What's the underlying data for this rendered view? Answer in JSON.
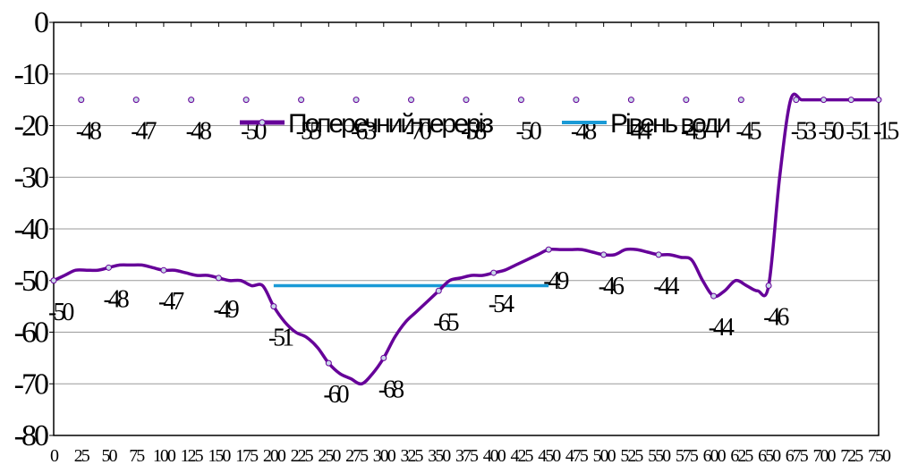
{
  "chart_data": {
    "type": "line",
    "title": "",
    "xlabel": "",
    "ylabel": "",
    "ylim": [
      -80,
      0
    ],
    "yticks": [
      0,
      -10,
      -20,
      -30,
      -40,
      -50,
      -60,
      -70,
      -80
    ],
    "ytick_labels": [
      "0",
      "-10",
      "-20",
      "-30",
      "-40",
      "-50",
      "-60",
      "-70",
      "-80"
    ],
    "grid": true,
    "legend_position": "top-center",
    "x": [
      0,
      25,
      50,
      75,
      100,
      125,
      150,
      175,
      200,
      225,
      250,
      275,
      300,
      325,
      350,
      375,
      400,
      425,
      450,
      475,
      500,
      525,
      550,
      575,
      600,
      625,
      650,
      675,
      700,
      725,
      750
    ],
    "xtick_labels": [
      "0",
      "25",
      "50",
      "75",
      "100",
      "125",
      "150",
      "175",
      "200",
      "225",
      "250",
      "275",
      "300",
      "325",
      "350",
      "375",
      "400",
      "425",
      "450",
      "475",
      "500",
      "525",
      "550",
      "575",
      "600",
      "625",
      "650",
      "675",
      "700",
      "725",
      "750"
    ],
    "series": [
      {
        "name": "Поперечний переріз",
        "color": "#660099",
        "x": [
          0,
          10,
          20,
          30,
          40,
          50,
          60,
          70,
          80,
          90,
          100,
          110,
          120,
          130,
          140,
          150,
          160,
          170,
          180,
          190,
          200,
          210,
          220,
          230,
          240,
          250,
          260,
          270,
          280,
          290,
          300,
          310,
          320,
          330,
          340,
          350,
          360,
          370,
          380,
          390,
          400,
          410,
          420,
          430,
          440,
          450,
          460,
          470,
          480,
          490,
          500,
          510,
          520,
          530,
          540,
          550,
          560,
          570,
          580,
          590,
          600,
          610,
          620,
          630,
          640,
          650,
          660,
          670,
          680,
          690,
          700,
          710,
          720,
          730,
          740,
          750
        ],
        "y": [
          -50,
          -49,
          -48,
          -48,
          -48,
          -47.5,
          -47,
          -47,
          -47,
          -47.5,
          -48,
          -48,
          -48.5,
          -49,
          -49,
          -49.5,
          -50,
          -50,
          -51,
          -51,
          -55,
          -58,
          -60,
          -61,
          -63,
          -66,
          -68,
          -69,
          -70,
          -68,
          -65,
          -61,
          -58,
          -56,
          -54,
          -52,
          -50,
          -49.5,
          -49,
          -49,
          -48.5,
          -48,
          -47,
          -46,
          -45,
          -44,
          -44,
          -44,
          -44,
          -44.5,
          -45,
          -45,
          -44,
          -44,
          -44.5,
          -45,
          -45,
          -45.5,
          -46,
          -50,
          -53,
          -52,
          -50,
          -51,
          -52,
          -51,
          -30,
          -15,
          -15,
          -15,
          -15,
          -15,
          -15,
          -15,
          -15,
          -15
        ],
        "marker": "circle"
      },
      {
        "name": "Рівень води",
        "color": "#1a9ad6",
        "x": [
          200,
          450
        ],
        "y": [
          -51,
          -51
        ]
      }
    ],
    "data_labels": [
      "-50",
      "-48",
      "-48",
      "-47",
      "-47",
      "-48",
      "-49",
      "-50",
      "-51",
      "-55",
      "-60",
      "-63",
      "-68",
      "-70",
      "-65",
      "-58",
      "-54",
      "-50",
      "-49",
      "-48",
      "-46",
      "-44",
      "-44",
      "-45",
      "-44",
      "-45",
      "-46",
      "-53",
      "-50",
      "-51",
      "-15"
    ]
  }
}
